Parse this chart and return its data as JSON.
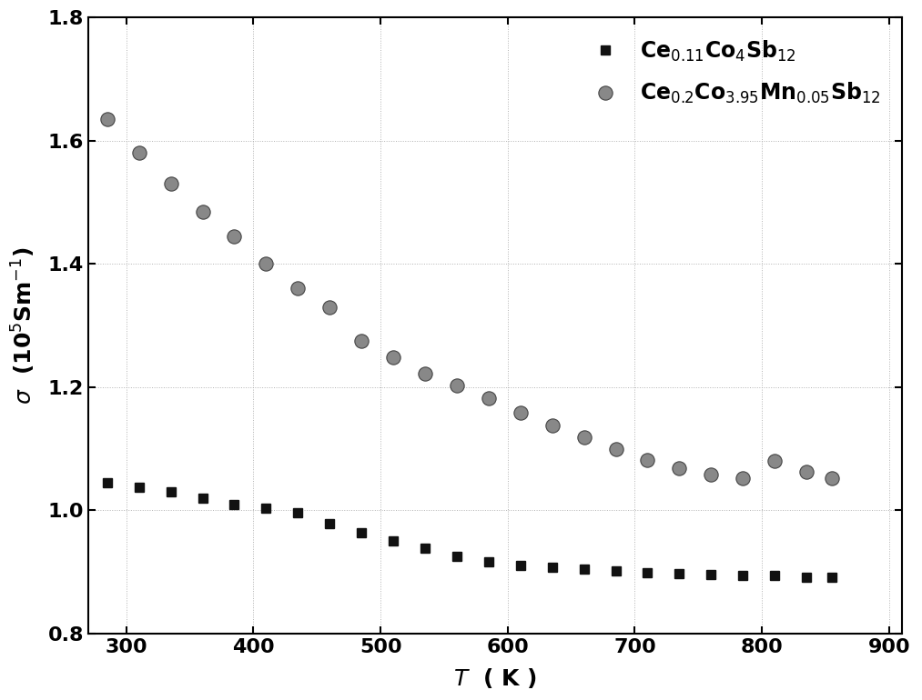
{
  "series1_label": "Ce$_{0.11}$Co$_{4}$Sb$_{12}$",
  "series2_label": "Ce$_{0.2}$Co$_{3.95}$Mn$_{0.05}$Sb$_{12}$",
  "series1_x": [
    285,
    310,
    335,
    360,
    385,
    410,
    435,
    460,
    485,
    510,
    535,
    560,
    585,
    610,
    635,
    660,
    685,
    710,
    735,
    760,
    785,
    810,
    835,
    855
  ],
  "series1_y": [
    1.045,
    1.038,
    1.03,
    1.02,
    1.01,
    1.003,
    0.996,
    0.978,
    0.963,
    0.95,
    0.938,
    0.926,
    0.916,
    0.91,
    0.908,
    0.904,
    0.901,
    0.899,
    0.897,
    0.896,
    0.894,
    0.894,
    0.892,
    0.891
  ],
  "series2_x": [
    285,
    310,
    335,
    360,
    385,
    410,
    435,
    460,
    485,
    510,
    535,
    560,
    585,
    610,
    635,
    660,
    685,
    710,
    735,
    760,
    785,
    810,
    835,
    855
  ],
  "series2_y": [
    1.635,
    1.58,
    1.53,
    1.485,
    1.445,
    1.4,
    1.36,
    1.33,
    1.275,
    1.248,
    1.222,
    1.202,
    1.182,
    1.158,
    1.138,
    1.118,
    1.1,
    1.082,
    1.068,
    1.058,
    1.052,
    1.08,
    1.062,
    1.052
  ],
  "marker1": "s",
  "marker2": "o",
  "color1": "#111111",
  "color2": "#888888",
  "markersize1": 7,
  "markersize2": 11,
  "xlabel": "$T$  ( K )",
  "ylabel": "$\\sigma$  (10$^{5}$Sm$^{-1}$)",
  "xlim": [
    270,
    910
  ],
  "ylim": [
    0.8,
    1.8
  ],
  "xticks": [
    300,
    400,
    500,
    600,
    700,
    800,
    900
  ],
  "yticks": [
    0.8,
    1.0,
    1.2,
    1.4,
    1.6,
    1.8
  ],
  "grid_color": "#aaaaaa",
  "background_color": "#ffffff",
  "legend_fontsize": 17,
  "label_fontsize": 18,
  "tick_fontsize": 16
}
